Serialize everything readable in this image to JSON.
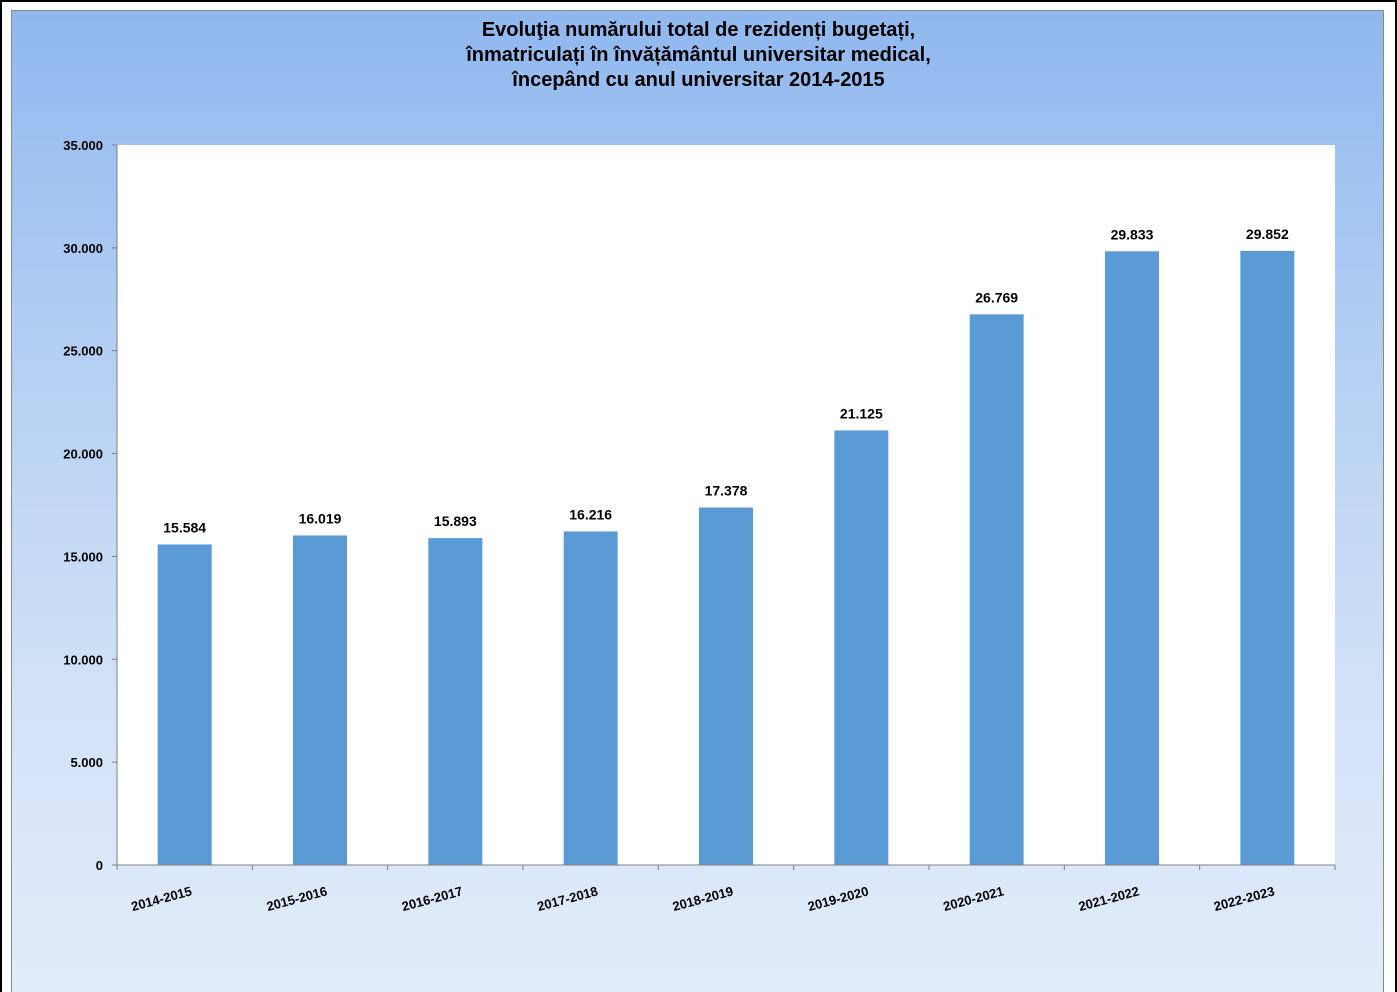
{
  "chart_data": {
    "type": "bar",
    "title": [
      "Evoluţia numărului total de rezidenți bugetați,",
      "înmatriculați în învățământul universitar medical,",
      "începând cu anul universitar 2014-2015"
    ],
    "categories": [
      "2014-2015",
      "2015-2016",
      "2016-2017",
      "2017-2018",
      "2018-2019",
      "2019-2020",
      "2020-2021",
      "2021-2022",
      "2022-2023"
    ],
    "values": [
      15584,
      16019,
      15893,
      16216,
      17378,
      21125,
      26769,
      29833,
      29852
    ],
    "value_labels": [
      "15.584",
      "16.019",
      "15.893",
      "16.216",
      "17.378",
      "21.125",
      "26.769",
      "29.833",
      "29.852"
    ],
    "ylim": [
      0,
      35000
    ],
    "yticks": [
      0,
      5000,
      10000,
      15000,
      20000,
      25000,
      30000,
      35000
    ],
    "ytick_labels": [
      "0",
      "5.000",
      "10.000",
      "15.000",
      "20.000",
      "25.000",
      "30.000",
      "35.000"
    ],
    "xlabel": "",
    "ylabel": "",
    "grid": false,
    "legend": "none",
    "colors": {
      "bar": "#5b9bd5",
      "plot_bg": "#ffffff",
      "frame_top": "#8fb8ef",
      "frame_bottom": "#e2ecfa"
    }
  }
}
